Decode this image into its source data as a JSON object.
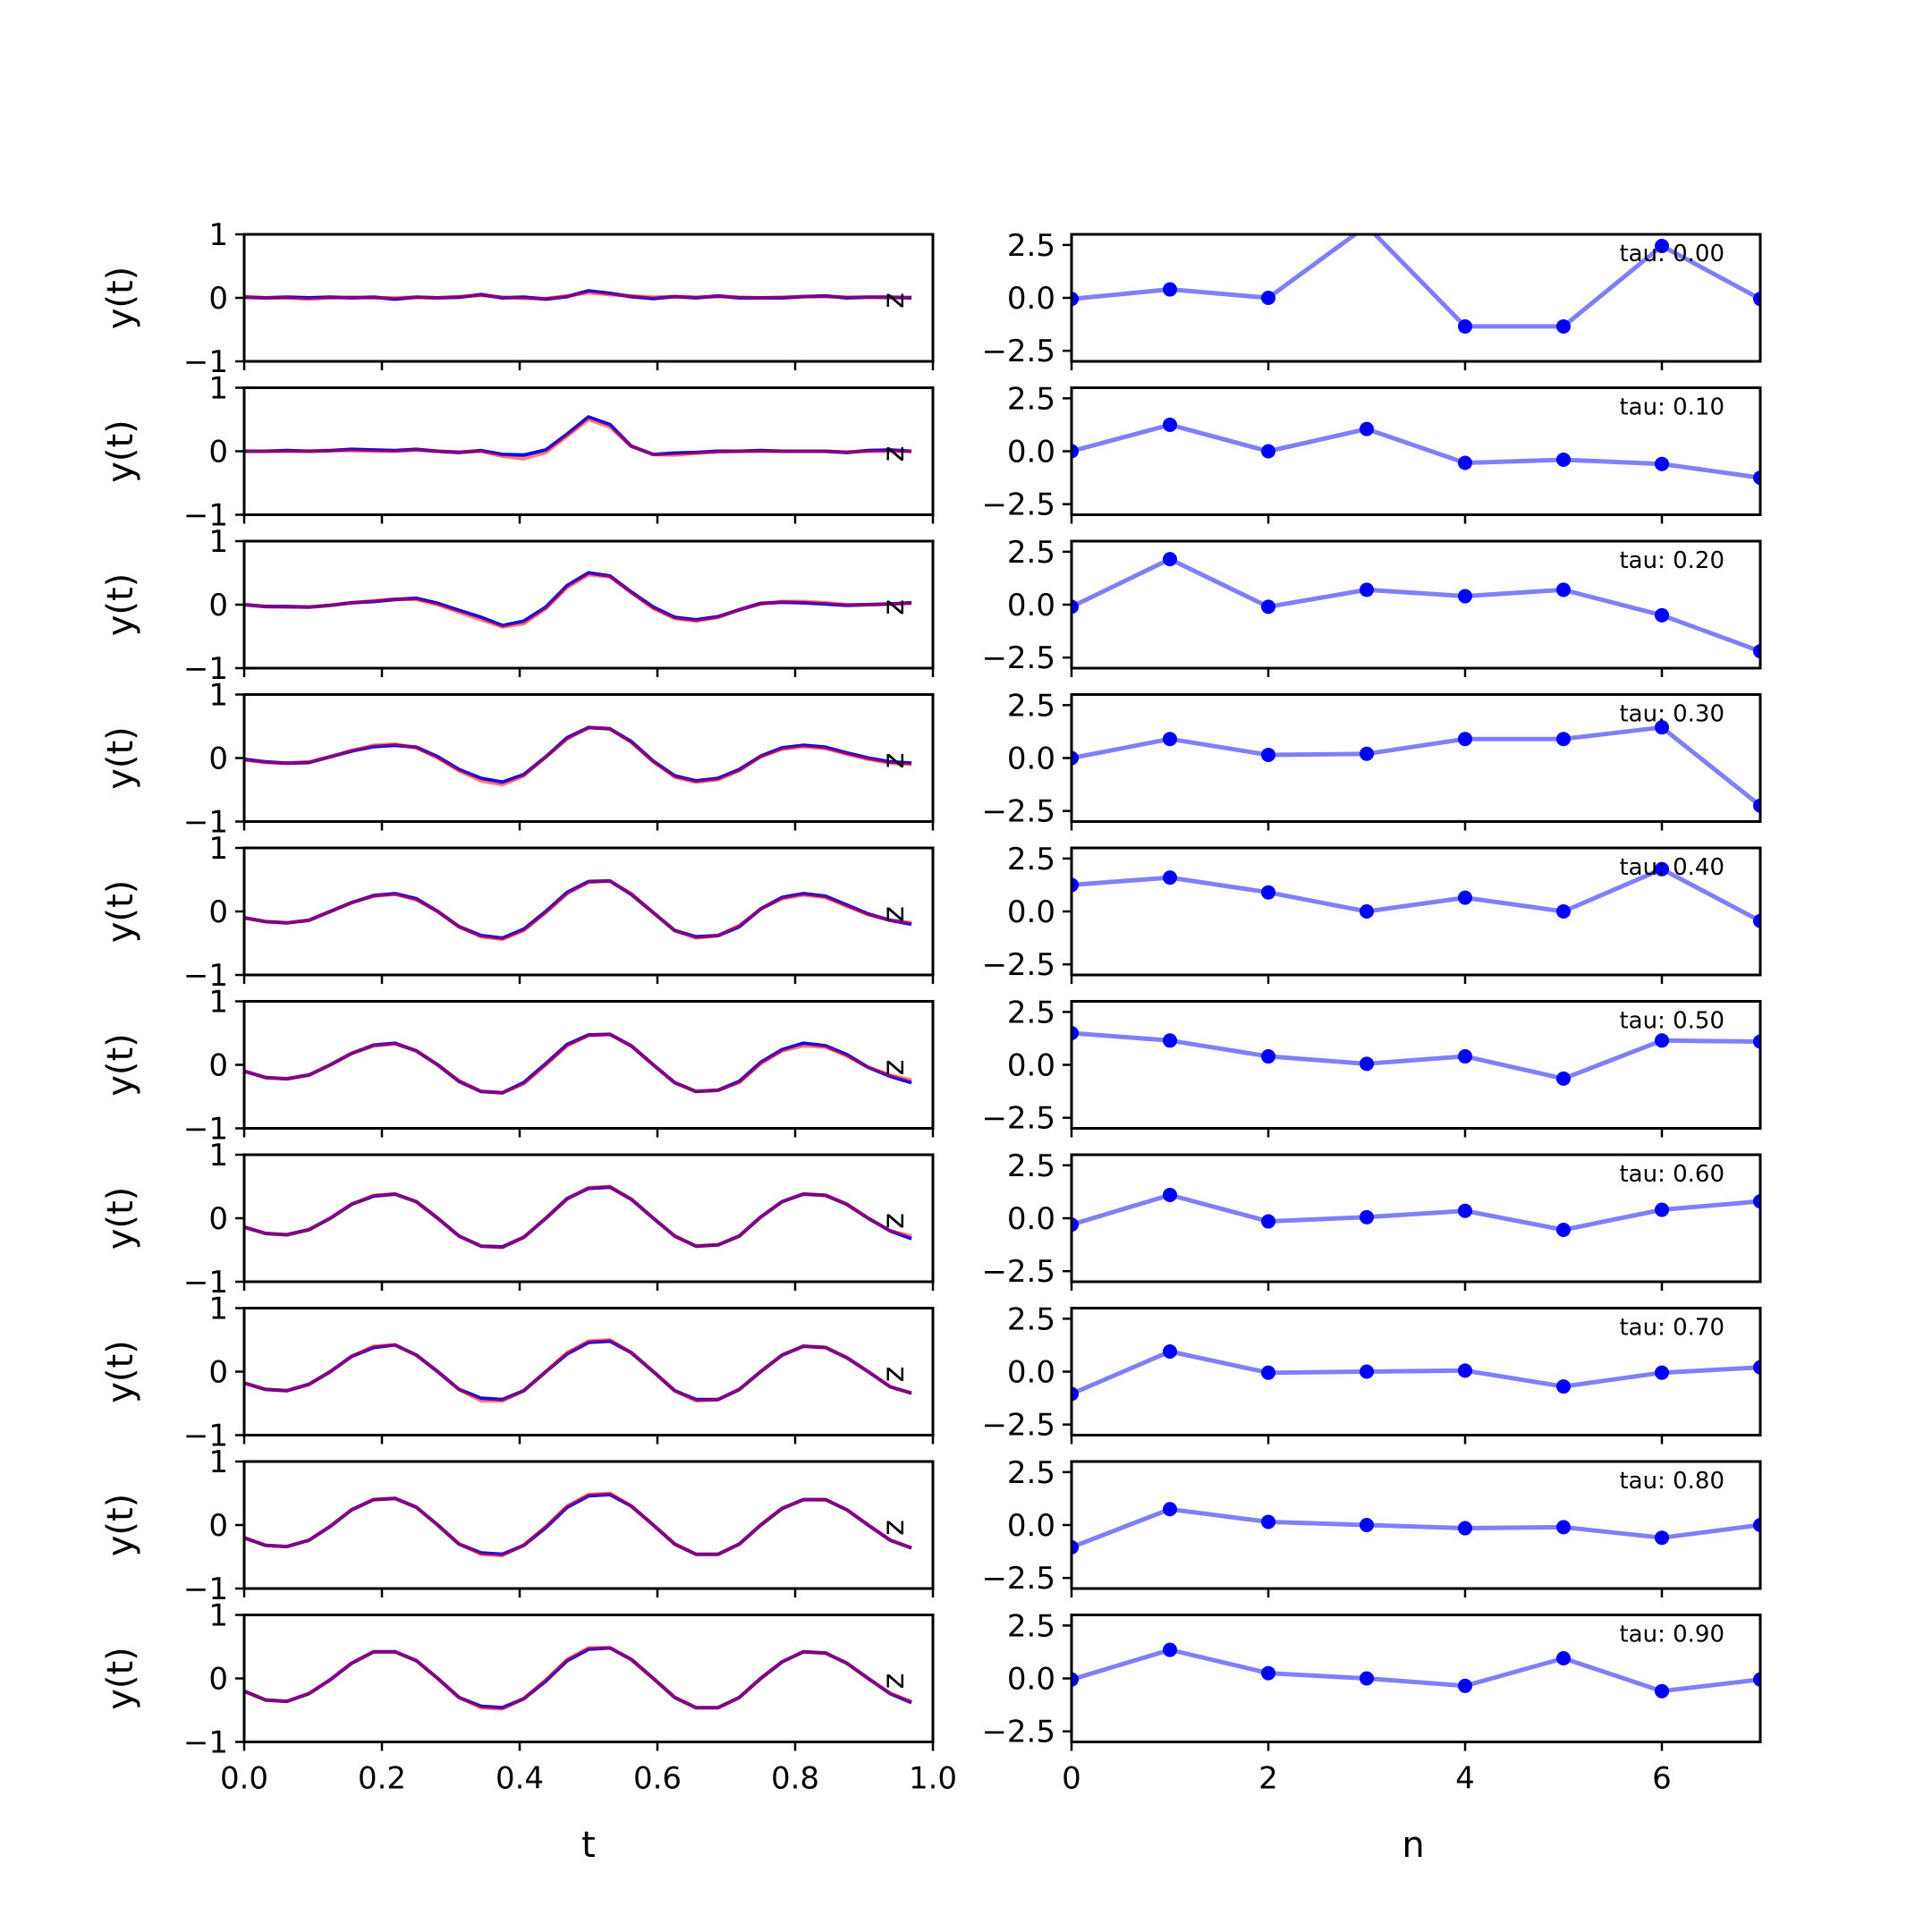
{
  "chart_data": {
    "type": "line",
    "left_column": {
      "xlabel": "t",
      "ylabel": "y(t)",
      "xlim": [
        0,
        1
      ],
      "ylim": [
        -1,
        1
      ],
      "xticks": [
        "0.0",
        "0.2",
        "0.4",
        "0.6",
        "0.8",
        "1.0"
      ],
      "yticks": [
        "-1",
        "0",
        "1"
      ],
      "series_colors": {
        "red": "#ff0000",
        "blue": "#0000ff",
        "overlap": "#800080"
      },
      "side_label": "z",
      "t": [
        0.0,
        0.031,
        0.062,
        0.094,
        0.125,
        0.156,
        0.188,
        0.219,
        0.25,
        0.281,
        0.312,
        0.344,
        0.375,
        0.406,
        0.438,
        0.469,
        0.5,
        0.531,
        0.562,
        0.594,
        0.625,
        0.656,
        0.688,
        0.719,
        0.75,
        0.781,
        0.812,
        0.844,
        0.875,
        0.906,
        0.938,
        0.969
      ],
      "panels": [
        {
          "red": [
            0.02,
            0.0,
            0.0,
            -0.02,
            0.0,
            0.01,
            0.0,
            0.0,
            0.01,
            0.0,
            0.02,
            0.04,
            0.01,
            -0.01,
            -0.01,
            0.03,
            0.08,
            0.05,
            0.03,
            0.01,
            0.02,
            0.01,
            0.02,
            0.01,
            0.0,
            0.01,
            0.02,
            0.02,
            0.01,
            0.01,
            0.0,
            0.01
          ],
          "blue": [
            0.01,
            0.0,
            0.01,
            0.0,
            0.01,
            0.0,
            0.01,
            -0.02,
            0.01,
            0.0,
            0.01,
            0.05,
            0.0,
            0.01,
            -0.02,
            0.02,
            0.11,
            0.07,
            0.02,
            -0.01,
            0.02,
            0.0,
            0.03,
            0.0,
            0.0,
            0.0,
            0.02,
            0.03,
            0.0,
            0.01,
            0.01,
            0.0
          ]
        },
        {
          "red": [
            0.0,
            0.0,
            0.0,
            0.0,
            0.01,
            0.01,
            0.0,
            0.0,
            0.02,
            0.0,
            -0.01,
            0.0,
            -0.08,
            -0.12,
            -0.02,
            0.24,
            0.5,
            0.38,
            0.08,
            -0.05,
            -0.06,
            -0.03,
            -0.01,
            0.0,
            0.0,
            0.0,
            0.0,
            0.0,
            -0.01,
            0.0,
            0.0,
            0.0
          ],
          "blue": [
            0.0,
            0.0,
            0.01,
            0.0,
            0.01,
            0.03,
            0.02,
            0.01,
            0.03,
            0.0,
            -0.02,
            0.01,
            -0.05,
            -0.06,
            0.02,
            0.27,
            0.54,
            0.42,
            0.08,
            -0.05,
            -0.03,
            -0.02,
            0.0,
            0.0,
            0.01,
            0.0,
            0.0,
            0.0,
            -0.02,
            0.01,
            0.02,
            0.0
          ]
        },
        {
          "red": [
            0.0,
            -0.03,
            -0.04,
            -0.04,
            -0.01,
            0.03,
            0.06,
            0.09,
            0.08,
            0.0,
            -0.12,
            -0.24,
            -0.35,
            -0.3,
            -0.06,
            0.27,
            0.47,
            0.44,
            0.19,
            -0.06,
            -0.22,
            -0.26,
            -0.2,
            -0.08,
            0.01,
            0.05,
            0.05,
            0.03,
            0.0,
            0.0,
            0.01,
            0.02
          ],
          "blue": [
            0.0,
            -0.03,
            -0.03,
            -0.04,
            -0.01,
            0.03,
            0.05,
            0.08,
            0.1,
            0.02,
            -0.09,
            -0.2,
            -0.33,
            -0.26,
            -0.04,
            0.3,
            0.5,
            0.45,
            0.2,
            -0.04,
            -0.2,
            -0.24,
            -0.19,
            -0.08,
            0.02,
            0.04,
            0.03,
            0.01,
            -0.01,
            0.0,
            0.01,
            0.03
          ]
        },
        {
          "red": [
            -0.03,
            -0.07,
            -0.08,
            -0.06,
            0.02,
            0.12,
            0.2,
            0.22,
            0.16,
            0.0,
            -0.2,
            -0.36,
            -0.42,
            -0.28,
            0.02,
            0.3,
            0.48,
            0.46,
            0.25,
            -0.06,
            -0.3,
            -0.38,
            -0.34,
            -0.2,
            0.02,
            0.14,
            0.18,
            0.15,
            0.06,
            -0.02,
            -0.08,
            -0.1
          ],
          "blue": [
            -0.02,
            -0.06,
            -0.08,
            -0.07,
            0.02,
            0.11,
            0.18,
            0.2,
            0.17,
            0.02,
            -0.18,
            -0.32,
            -0.38,
            -0.26,
            0.02,
            0.32,
            0.48,
            0.46,
            0.26,
            -0.05,
            -0.28,
            -0.36,
            -0.32,
            -0.18,
            0.03,
            0.16,
            0.2,
            0.17,
            0.08,
            0.0,
            -0.06,
            -0.08
          ]
        },
        {
          "red": [
            -0.1,
            -0.16,
            -0.18,
            -0.14,
            0.0,
            0.14,
            0.24,
            0.27,
            0.18,
            0.0,
            -0.24,
            -0.4,
            -0.44,
            -0.3,
            -0.02,
            0.28,
            0.46,
            0.48,
            0.28,
            -0.02,
            -0.3,
            -0.42,
            -0.38,
            -0.22,
            0.04,
            0.2,
            0.26,
            0.22,
            0.08,
            -0.05,
            -0.14,
            -0.18
          ],
          "blue": [
            -0.1,
            -0.16,
            -0.18,
            -0.14,
            0.0,
            0.14,
            0.25,
            0.28,
            0.2,
            0.0,
            -0.24,
            -0.38,
            -0.42,
            -0.28,
            0.0,
            0.3,
            0.47,
            0.48,
            0.27,
            -0.02,
            -0.3,
            -0.4,
            -0.38,
            -0.24,
            0.04,
            0.22,
            0.28,
            0.24,
            0.1,
            -0.04,
            -0.14,
            -0.2
          ]
        },
        {
          "red": [
            -0.1,
            -0.2,
            -0.22,
            -0.16,
            0.0,
            0.18,
            0.3,
            0.33,
            0.22,
            0.0,
            -0.25,
            -0.42,
            -0.44,
            -0.3,
            0.0,
            0.3,
            0.46,
            0.48,
            0.3,
            0.0,
            -0.28,
            -0.42,
            -0.4,
            -0.28,
            0.02,
            0.22,
            0.3,
            0.28,
            0.14,
            -0.04,
            -0.16,
            -0.24
          ],
          "blue": [
            -0.1,
            -0.2,
            -0.22,
            -0.16,
            0.0,
            0.18,
            0.31,
            0.34,
            0.22,
            0.0,
            -0.26,
            -0.42,
            -0.44,
            -0.28,
            0.02,
            0.32,
            0.47,
            0.48,
            0.3,
            0.0,
            -0.28,
            -0.42,
            -0.4,
            -0.26,
            0.04,
            0.24,
            0.34,
            0.3,
            0.16,
            -0.04,
            -0.18,
            -0.28
          ]
        },
        {
          "red": [
            -0.14,
            -0.24,
            -0.26,
            -0.18,
            0.0,
            0.22,
            0.36,
            0.38,
            0.26,
            0.0,
            -0.28,
            -0.44,
            -0.46,
            -0.3,
            0.0,
            0.3,
            0.48,
            0.5,
            0.3,
            0.0,
            -0.28,
            -0.44,
            -0.42,
            -0.28,
            0.02,
            0.26,
            0.38,
            0.36,
            0.22,
            0.0,
            -0.2,
            -0.28
          ],
          "blue": [
            -0.14,
            -0.24,
            -0.26,
            -0.18,
            0.0,
            0.22,
            0.35,
            0.38,
            0.26,
            0.0,
            -0.28,
            -0.44,
            -0.45,
            -0.3,
            0.0,
            0.31,
            0.47,
            0.49,
            0.3,
            0.0,
            -0.28,
            -0.44,
            -0.42,
            -0.28,
            0.02,
            0.26,
            0.38,
            0.36,
            0.22,
            0.0,
            -0.2,
            -0.32
          ]
        },
        {
          "red": [
            -0.18,
            -0.28,
            -0.3,
            -0.2,
            0.0,
            0.24,
            0.4,
            0.42,
            0.26,
            0.0,
            -0.28,
            -0.46,
            -0.46,
            -0.3,
            0.0,
            0.3,
            0.48,
            0.5,
            0.3,
            0.0,
            -0.3,
            -0.46,
            -0.44,
            -0.28,
            0.0,
            0.26,
            0.4,
            0.38,
            0.22,
            0.0,
            -0.24,
            -0.34
          ],
          "blue": [
            -0.18,
            -0.28,
            -0.3,
            -0.2,
            0.0,
            0.24,
            0.38,
            0.42,
            0.26,
            0.0,
            -0.28,
            -0.42,
            -0.44,
            -0.3,
            0.0,
            0.28,
            0.46,
            0.48,
            0.3,
            0.0,
            -0.3,
            -0.44,
            -0.44,
            -0.28,
            0.0,
            0.26,
            0.4,
            0.38,
            0.22,
            0.0,
            -0.24,
            -0.34
          ]
        },
        {
          "red": [
            -0.2,
            -0.32,
            -0.34,
            -0.24,
            -0.02,
            0.24,
            0.4,
            0.42,
            0.28,
            0.0,
            -0.3,
            -0.46,
            -0.48,
            -0.32,
            -0.02,
            0.3,
            0.48,
            0.5,
            0.3,
            0.0,
            -0.3,
            -0.46,
            -0.46,
            -0.3,
            0.0,
            0.26,
            0.4,
            0.4,
            0.24,
            0.0,
            -0.24,
            -0.36
          ],
          "blue": [
            -0.2,
            -0.32,
            -0.34,
            -0.24,
            -0.02,
            0.24,
            0.4,
            0.42,
            0.28,
            0.0,
            -0.3,
            -0.44,
            -0.46,
            -0.32,
            -0.04,
            0.28,
            0.46,
            0.48,
            0.3,
            0.0,
            -0.3,
            -0.46,
            -0.46,
            -0.3,
            0.0,
            0.26,
            0.4,
            0.4,
            0.24,
            0.0,
            -0.24,
            -0.36
          ]
        },
        {
          "red": [
            -0.2,
            -0.34,
            -0.36,
            -0.24,
            -0.02,
            0.24,
            0.42,
            0.42,
            0.28,
            0.0,
            -0.3,
            -0.46,
            -0.48,
            -0.32,
            -0.02,
            0.3,
            0.48,
            0.48,
            0.3,
            0.0,
            -0.3,
            -0.46,
            -0.46,
            -0.3,
            0.0,
            0.26,
            0.42,
            0.4,
            0.24,
            0.0,
            -0.24,
            -0.36
          ],
          "blue": [
            -0.2,
            -0.34,
            -0.36,
            -0.24,
            -0.02,
            0.24,
            0.42,
            0.42,
            0.28,
            0.0,
            -0.3,
            -0.44,
            -0.46,
            -0.32,
            -0.04,
            0.28,
            0.46,
            0.48,
            0.3,
            0.0,
            -0.3,
            -0.46,
            -0.46,
            -0.3,
            0.0,
            0.26,
            0.42,
            0.4,
            0.24,
            0.0,
            -0.24,
            -0.38
          ]
        }
      ]
    },
    "right_column": {
      "xlabel": "n",
      "xlim": [
        0,
        7
      ],
      "ylim": [
        -3,
        3
      ],
      "xticks": [
        "0",
        "2",
        "4",
        "6"
      ],
      "xtick_values": [
        0,
        2,
        4,
        6
      ],
      "yticks": [
        "2.5",
        "0.0",
        "-2.5"
      ],
      "ytick_values": [
        2.5,
        0.0,
        -2.5
      ],
      "line_color": "#8080ff",
      "marker_color": "#0000ff",
      "n": [
        0,
        1,
        2,
        3,
        4,
        5,
        6,
        7
      ],
      "panels": [
        {
          "tau": "tau: 0.00",
          "values": [
            -0.05,
            0.4,
            0.0,
            3.4,
            -1.35,
            -1.35,
            2.45,
            -0.05
          ]
        },
        {
          "tau": "tau: 0.10",
          "values": [
            0.0,
            1.25,
            0.0,
            1.05,
            -0.55,
            -0.4,
            -0.6,
            -1.25
          ]
        },
        {
          "tau": "tau: 0.20",
          "values": [
            -0.1,
            2.15,
            -0.1,
            0.7,
            0.4,
            0.7,
            -0.5,
            -2.2
          ]
        },
        {
          "tau": "tau: 0.30",
          "values": [
            0.0,
            0.9,
            0.15,
            0.2,
            0.9,
            0.9,
            1.45,
            -2.25
          ]
        },
        {
          "tau": "tau: 0.40",
          "values": [
            1.25,
            1.6,
            0.9,
            0.0,
            0.65,
            0.0,
            2.0,
            -0.45
          ]
        },
        {
          "tau": "tau: 0.50",
          "values": [
            1.5,
            1.15,
            0.4,
            0.05,
            0.4,
            -0.65,
            1.15,
            1.1
          ]
        },
        {
          "tau": "tau: 0.60",
          "values": [
            -0.3,
            1.1,
            -0.15,
            0.05,
            0.35,
            -0.55,
            0.4,
            0.8
          ]
        },
        {
          "tau": "tau: 0.70",
          "values": [
            -1.05,
            0.95,
            -0.05,
            0.0,
            0.05,
            -0.7,
            -0.05,
            0.2
          ]
        },
        {
          "tau": "tau: 0.80",
          "values": [
            -1.05,
            0.75,
            0.15,
            0.0,
            -0.15,
            -0.1,
            -0.6,
            0.0
          ]
        },
        {
          "tau": "tau: 0.90",
          "values": [
            -0.05,
            1.35,
            0.25,
            0.0,
            -0.35,
            0.95,
            -0.6,
            -0.05
          ]
        }
      ]
    }
  }
}
